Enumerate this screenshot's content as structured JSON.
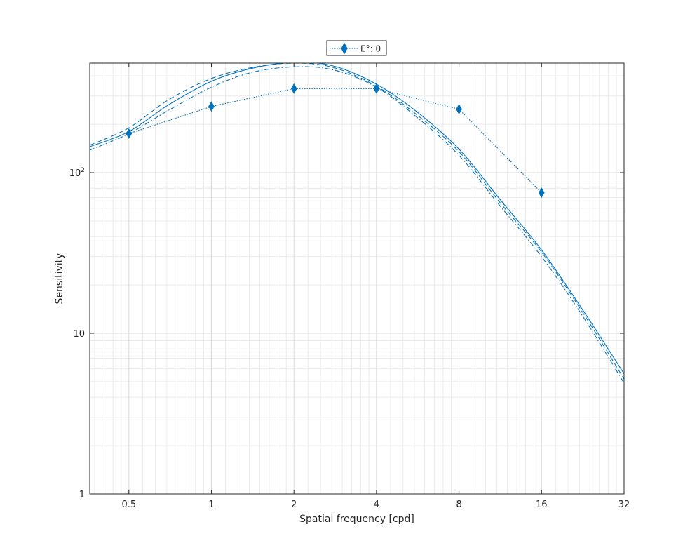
{
  "chart_data": {
    "type": "line",
    "xlabel": "Spatial frequency [cpd]",
    "ylabel": "Sensitivity",
    "xscale": "log2",
    "yscale": "log10",
    "xlim": [
      0.36,
      32
    ],
    "ylim": [
      1,
      480
    ],
    "grid": true,
    "minor_grid": true,
    "legend_position": "top-center",
    "xticks": [
      {
        "value": 0.5,
        "label": "0.5"
      },
      {
        "value": 1,
        "label": "1"
      },
      {
        "value": 2,
        "label": "2"
      },
      {
        "value": 4,
        "label": "4"
      },
      {
        "value": 8,
        "label": "8"
      },
      {
        "value": 16,
        "label": "16"
      },
      {
        "value": 32,
        "label": "32"
      }
    ],
    "yticks": [
      {
        "value": 1,
        "label": "1",
        "sup": ""
      },
      {
        "value": 10,
        "label": "10",
        "sup": ""
      },
      {
        "value": 100,
        "label": "10",
        "sup": "2"
      }
    ],
    "color": "#0072BD",
    "series": [
      {
        "name": "E°: 0",
        "style": "dotted",
        "marker": "diamond",
        "x": [
          0.5,
          1,
          2,
          4,
          8,
          16
        ],
        "y": [
          175,
          258,
          333,
          333,
          248,
          75
        ]
      },
      {
        "style": "solid",
        "marker": "none",
        "x": [
          0.36,
          0.5,
          0.7,
          1,
          1.4,
          2,
          2.8,
          4,
          5.6,
          8,
          11.3,
          16,
          22.6,
          32
        ],
        "y": [
          145,
          180,
          265,
          370,
          445,
          485,
          460,
          355,
          240,
          140,
          68,
          33,
          14,
          5.6
        ]
      },
      {
        "style": "dashed",
        "marker": "none",
        "x": [
          0.36,
          0.5,
          0.7,
          1,
          1.4,
          2,
          2.8,
          4,
          5.6,
          8,
          11.3,
          16,
          22.6,
          32
        ],
        "y": [
          148,
          190,
          285,
          385,
          450,
          480,
          450,
          345,
          230,
          135,
          65,
          32,
          13.5,
          5.2
        ]
      },
      {
        "style": "dashdot",
        "marker": "none",
        "x": [
          0.36,
          0.5,
          0.7,
          1,
          1.4,
          2,
          2.8,
          4,
          5.6,
          8,
          11.3,
          16,
          22.6,
          32
        ],
        "y": [
          138,
          175,
          245,
          340,
          420,
          455,
          435,
          340,
          222,
          128,
          62,
          30,
          12.8,
          4.9
        ]
      }
    ]
  }
}
